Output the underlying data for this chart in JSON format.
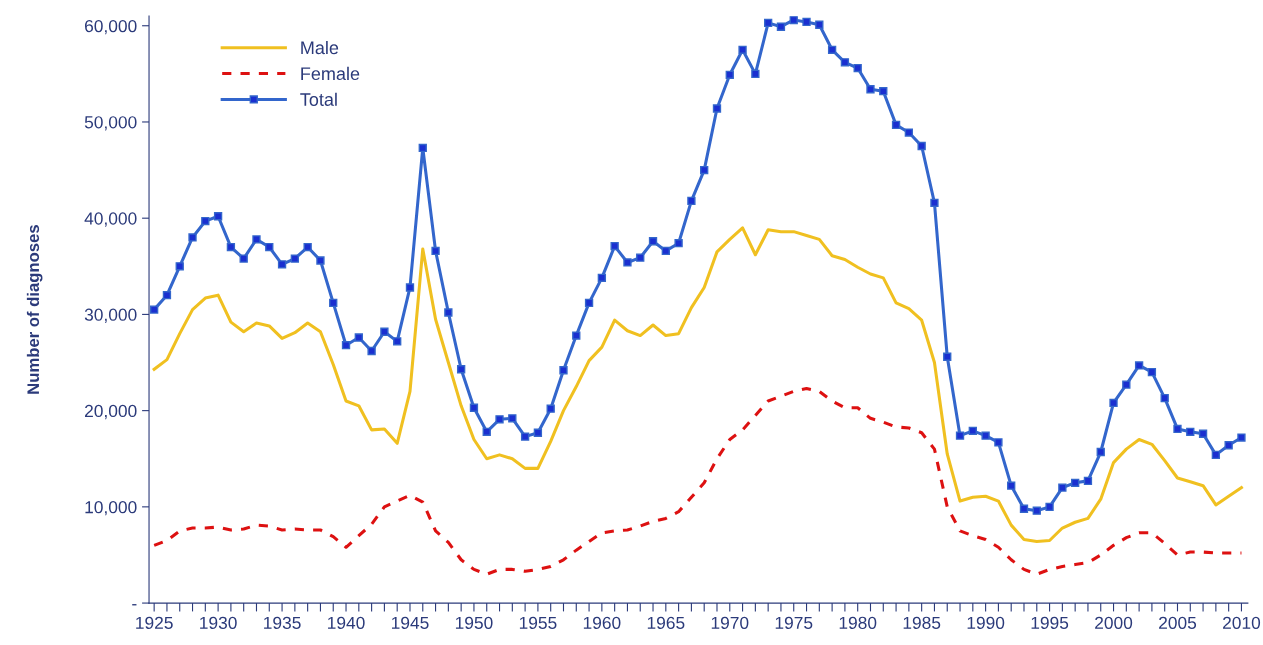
{
  "chart_data": {
    "type": "line",
    "ylabel": "Number of diagnoses",
    "x": [
      1925,
      1926,
      1927,
      1928,
      1929,
      1930,
      1931,
      1932,
      1933,
      1934,
      1935,
      1936,
      1937,
      1938,
      1939,
      1940,
      1941,
      1942,
      1943,
      1944,
      1945,
      1946,
      1947,
      1948,
      1949,
      1950,
      1951,
      1952,
      1953,
      1954,
      1955,
      1956,
      1957,
      1958,
      1959,
      1960,
      1961,
      1962,
      1963,
      1964,
      1965,
      1966,
      1967,
      1968,
      1969,
      1970,
      1971,
      1972,
      1973,
      1974,
      1975,
      1976,
      1977,
      1978,
      1979,
      1980,
      1981,
      1982,
      1983,
      1984,
      1985,
      1986,
      1987,
      1988,
      1989,
      1990,
      1991,
      1992,
      1993,
      1994,
      1995,
      1996,
      1997,
      1998,
      1999,
      2000,
      2001,
      2002,
      2003,
      2004,
      2005,
      2006,
      2007,
      2008,
      2009,
      2010
    ],
    "series": [
      {
        "name": "Male",
        "color": "#f0c020",
        "line_style": "solid",
        "marker": "none",
        "values": [
          24300,
          25300,
          28000,
          30500,
          31700,
          32000,
          29200,
          28200,
          29100,
          28800,
          27500,
          28100,
          29100,
          28200,
          24800,
          21000,
          20500,
          18000,
          18100,
          16600,
          22000,
          36800,
          29500,
          25000,
          20500,
          17000,
          15000,
          15400,
          15000,
          14000,
          14000,
          16800,
          20000,
          22500,
          25200,
          26600,
          29400,
          28300,
          27800,
          28900,
          27800,
          28000,
          30700,
          32800,
          36500,
          37800,
          39000,
          36200,
          38800,
          38600,
          38600,
          38200,
          37800,
          36100,
          35700,
          34900,
          34200,
          33800,
          31200,
          30600,
          29400,
          25000,
          15500,
          10600,
          11000,
          11100,
          10600,
          8100,
          6600,
          6400,
          6500,
          7800,
          8400,
          8800,
          10800,
          14600,
          16000,
          17000,
          16500,
          14800,
          13000,
          12600,
          12200,
          10200,
          11100,
          12000
        ]
      },
      {
        "name": "Female",
        "color": "#dd1111",
        "line_style": "dashed",
        "marker": "none",
        "values": [
          6000,
          6500,
          7500,
          7800,
          7800,
          7900,
          7600,
          7700,
          8100,
          8000,
          7600,
          7700,
          7600,
          7600,
          6900,
          5800,
          7000,
          8200,
          10000,
          10600,
          11200,
          10500,
          7500,
          6300,
          4500,
          3500,
          3000,
          3500,
          3500,
          3300,
          3500,
          3800,
          4500,
          5500,
          6400,
          7300,
          7500,
          7600,
          8000,
          8500,
          8800,
          9500,
          11000,
          12500,
          15000,
          17000,
          18000,
          19500,
          21000,
          21500,
          22000,
          22300,
          22000,
          21000,
          20300,
          20300,
          19200,
          18800,
          18300,
          18200,
          17700,
          16000,
          10000,
          7500,
          7000,
          6600,
          5800,
          4500,
          3500,
          3000,
          3500,
          3800,
          4000,
          4200,
          5000,
          6000,
          6800,
          7300,
          7300,
          6200,
          5000,
          5300,
          5300,
          5200,
          5200,
          5200
        ]
      },
      {
        "name": "Total",
        "color": "#3366cc",
        "line_style": "solid",
        "marker": "square",
        "values": [
          30500,
          32000,
          35000,
          38000,
          39700,
          40200,
          37000,
          35800,
          37800,
          37000,
          35200,
          35800,
          37000,
          35600,
          31200,
          26800,
          27600,
          26200,
          28200,
          27200,
          32800,
          47300,
          36600,
          30200,
          24300,
          20300,
          17800,
          19100,
          19200,
          17300,
          17700,
          20200,
          24200,
          27800,
          31200,
          33800,
          37100,
          35400,
          35900,
          37600,
          36600,
          37400,
          41800,
          45000,
          51400,
          54900,
          57500,
          55000,
          60300,
          59900,
          60600,
          60400,
          60100,
          57500,
          56200,
          55600,
          53400,
          53200,
          49700,
          48900,
          47500,
          41600,
          25600,
          17400,
          17900,
          17400,
          16700,
          12200,
          9800,
          9600,
          10000,
          12000,
          12500,
          12700,
          15700,
          20800,
          22700,
          24700,
          24000,
          21300,
          18100,
          17800,
          17600,
          15400,
          16400,
          17200
        ]
      }
    ],
    "xlim": [
      1924.6,
      2010.5
    ],
    "ylim": [
      0,
      61000
    ],
    "xticks": [
      1925,
      {
        "value": 1926,
        "label": null
      },
      {
        "value": 1927,
        "label": null
      },
      {
        "value": 1928,
        "label": null
      },
      {
        "value": 1929,
        "label": null
      },
      1930,
      {
        "value": 1931,
        "label": null
      },
      {
        "value": 1932,
        "label": null
      },
      {
        "value": 1933,
        "label": null
      },
      {
        "value": 1934,
        "label": null
      },
      1935,
      {
        "value": 1936,
        "label": null
      },
      {
        "value": 1937,
        "label": null
      },
      {
        "value": 1938,
        "label": null
      },
      {
        "value": 1939,
        "label": null
      },
      1940,
      {
        "value": 1941,
        "label": null
      },
      {
        "value": 1942,
        "label": null
      },
      {
        "value": 1943,
        "label": null
      },
      {
        "value": 1944,
        "label": null
      },
      1945,
      {
        "value": 1946,
        "label": null
      },
      {
        "value": 1947,
        "label": null
      },
      {
        "value": 1948,
        "label": null
      },
      {
        "value": 1949,
        "label": null
      },
      1950,
      {
        "value": 1951,
        "label": null
      },
      {
        "value": 1952,
        "label": null
      },
      {
        "value": 1953,
        "label": null
      },
      {
        "value": 1954,
        "label": null
      },
      1955,
      {
        "value": 1956,
        "label": null
      },
      {
        "value": 1957,
        "label": null
      },
      {
        "value": 1958,
        "label": null
      },
      {
        "value": 1959,
        "label": null
      },
      1960,
      {
        "value": 1961,
        "label": null
      },
      {
        "value": 1962,
        "label": null
      },
      {
        "value": 1963,
        "label": null
      },
      {
        "value": 1964,
        "label": null
      },
      1965,
      {
        "value": 1966,
        "label": null
      },
      {
        "value": 1967,
        "label": null
      },
      {
        "value": 1968,
        "label": null
      },
      {
        "value": 1969,
        "label": null
      },
      1970,
      {
        "value": 1971,
        "label": null
      },
      {
        "value": 1972,
        "label": null
      },
      {
        "value": 1973,
        "label": null
      },
      {
        "value": 1974,
        "label": null
      },
      1975,
      {
        "value": 1976,
        "label": null
      },
      {
        "value": 1977,
        "label": null
      },
      {
        "value": 1978,
        "label": null
      },
      {
        "value": 1979,
        "label": null
      },
      1980,
      {
        "value": 1981,
        "label": null
      },
      {
        "value": 1982,
        "label": null
      },
      {
        "value": 1983,
        "label": null
      },
      {
        "value": 1984,
        "label": null
      },
      1985,
      {
        "value": 1986,
        "label": null
      },
      {
        "value": 1987,
        "label": null
      },
      {
        "value": 1988,
        "label": null
      },
      {
        "value": 1989,
        "label": null
      },
      1990,
      {
        "value": 1991,
        "label": null
      },
      {
        "value": 1992,
        "label": null
      },
      {
        "value": 1993,
        "label": null
      },
      {
        "value": 1994,
        "label": null
      },
      1995,
      {
        "value": 1996,
        "label": null
      },
      {
        "value": 1997,
        "label": null
      },
      {
        "value": 1998,
        "label": null
      },
      {
        "value": 1999,
        "label": null
      },
      2000,
      {
        "value": 2001,
        "label": null
      },
      {
        "value": 2002,
        "label": null
      },
      {
        "value": 2003,
        "label": null
      },
      {
        "value": 2004,
        "label": null
      },
      2005,
      {
        "value": 2006,
        "label": null
      },
      {
        "value": 2007,
        "label": null
      },
      {
        "value": 2008,
        "label": null
      },
      {
        "value": 2009,
        "label": null
      },
      2010
    ],
    "yticks": [
      {
        "value": 0,
        "label": "-"
      },
      {
        "value": 10000,
        "label": "10,000"
      },
      {
        "value": 20000,
        "label": "20,000"
      },
      {
        "value": 30000,
        "label": "30,000"
      },
      {
        "value": 40000,
        "label": "40,000"
      },
      {
        "value": 50000,
        "label": "50,000"
      },
      {
        "value": 60000,
        "label": "60,000"
      }
    ],
    "grid": false,
    "legend": "top left"
  }
}
